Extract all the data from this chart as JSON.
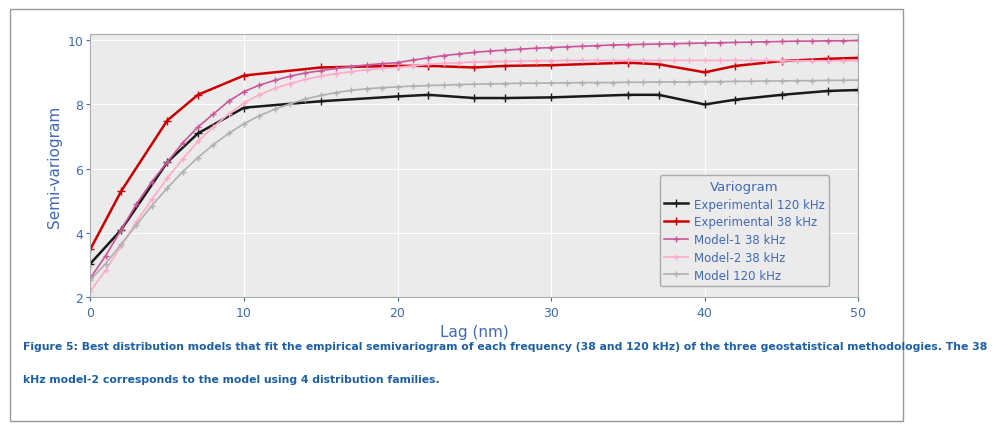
{
  "title": "",
  "xlabel": "Lag (nm)",
  "ylabel": "Semi-variogram",
  "legend_title": "Variogram",
  "xlim": [
    0,
    50
  ],
  "ylim": [
    2,
    10.2
  ],
  "yticks": [
    2,
    4,
    6,
    8,
    10
  ],
  "xticks": [
    0,
    10,
    20,
    30,
    40,
    50
  ],
  "background_color": "#ffffff",
  "plot_bg_color": "#ebebeb",
  "grid_color": "#ffffff",
  "label_color": "#4169b8",
  "caption_color": "#1a5fa8",
  "caption": "Figure 5: Best distribution models that fit the empirical semivariogram of each frequency (38 and 120 kHz) of the three geostatistical methodologies. The 38\nkHz model-2 corresponds to the model using 4 distribution families.",
  "border_color": "#aaaaaa",
  "series": [
    {
      "label": "Experimental 120 kHz",
      "color": "#1a1a1a",
      "marker": "+",
      "linewidth": 1.8,
      "markersize": 6,
      "markevery": 1,
      "x": [
        0,
        2,
        5,
        7,
        10,
        15,
        20,
        22,
        25,
        27,
        30,
        35,
        37,
        40,
        42,
        45,
        48,
        50
      ],
      "y": [
        3.05,
        4.1,
        6.2,
        7.1,
        7.9,
        8.1,
        8.25,
        8.3,
        8.2,
        8.2,
        8.22,
        8.3,
        8.3,
        8.0,
        8.15,
        8.3,
        8.42,
        8.45
      ]
    },
    {
      "label": "Experimental 38 kHz",
      "color": "#cc0000",
      "marker": "+",
      "linewidth": 1.8,
      "markersize": 6,
      "markevery": 1,
      "x": [
        0,
        2,
        5,
        7,
        10,
        15,
        20,
        22,
        25,
        27,
        30,
        35,
        37,
        40,
        42,
        45,
        48,
        50
      ],
      "y": [
        3.5,
        5.3,
        7.5,
        8.3,
        8.9,
        9.15,
        9.2,
        9.2,
        9.15,
        9.2,
        9.22,
        9.3,
        9.25,
        9.0,
        9.2,
        9.35,
        9.42,
        9.45
      ]
    },
    {
      "label": "Model-1 38 kHz",
      "color": "#cc5599",
      "marker": "+",
      "linewidth": 1.2,
      "markersize": 4,
      "markevery": 1,
      "x": [
        0,
        1,
        2,
        3,
        4,
        5,
        6,
        7,
        8,
        9,
        10,
        11,
        12,
        13,
        14,
        15,
        16,
        17,
        18,
        19,
        20,
        21,
        22,
        23,
        24,
        25,
        26,
        27,
        28,
        29,
        30,
        31,
        32,
        33,
        34,
        35,
        36,
        37,
        38,
        39,
        40,
        41,
        42,
        43,
        44,
        45,
        46,
        47,
        48,
        49,
        50
      ],
      "y": [
        2.6,
        3.3,
        4.1,
        4.9,
        5.6,
        6.2,
        6.8,
        7.3,
        7.7,
        8.1,
        8.4,
        8.6,
        8.75,
        8.88,
        8.98,
        9.05,
        9.12,
        9.18,
        9.23,
        9.27,
        9.3,
        9.38,
        9.45,
        9.52,
        9.57,
        9.62,
        9.66,
        9.69,
        9.72,
        9.75,
        9.77,
        9.79,
        9.81,
        9.83,
        9.85,
        9.86,
        9.87,
        9.88,
        9.89,
        9.9,
        9.91,
        9.92,
        9.93,
        9.94,
        9.95,
        9.96,
        9.97,
        9.97,
        9.98,
        9.98,
        9.99
      ]
    },
    {
      "label": "Model-2 38 kHz",
      "color": "#ffaacc",
      "marker": "+",
      "linewidth": 1.2,
      "markersize": 4,
      "markevery": 1,
      "x": [
        0,
        1,
        2,
        3,
        4,
        5,
        6,
        7,
        8,
        9,
        10,
        11,
        12,
        13,
        14,
        15,
        16,
        17,
        18,
        19,
        20,
        21,
        22,
        23,
        24,
        25,
        26,
        27,
        28,
        29,
        30,
        31,
        32,
        33,
        34,
        35,
        36,
        37,
        38,
        39,
        40,
        41,
        42,
        43,
        44,
        45,
        46,
        47,
        48,
        49,
        50
      ],
      "y": [
        2.2,
        2.85,
        3.6,
        4.35,
        5.05,
        5.7,
        6.3,
        6.85,
        7.3,
        7.7,
        8.05,
        8.3,
        8.5,
        8.65,
        8.78,
        8.88,
        8.96,
        9.02,
        9.08,
        9.12,
        9.15,
        9.2,
        9.25,
        9.28,
        9.3,
        9.32,
        9.33,
        9.34,
        9.35,
        9.36,
        9.36,
        9.37,
        9.37,
        9.37,
        9.37,
        9.37,
        9.37,
        9.37,
        9.37,
        9.37,
        9.37,
        9.37,
        9.37,
        9.37,
        9.37,
        9.36,
        9.36,
        9.36,
        9.36,
        9.36,
        9.36
      ]
    },
    {
      "label": "Model 120 kHz",
      "color": "#b0b0b0",
      "marker": "+",
      "linewidth": 1.2,
      "markersize": 4,
      "markevery": 1,
      "x": [
        0,
        1,
        2,
        3,
        4,
        5,
        6,
        7,
        8,
        9,
        10,
        11,
        12,
        13,
        14,
        15,
        16,
        17,
        18,
        19,
        20,
        21,
        22,
        23,
        24,
        25,
        26,
        27,
        28,
        29,
        30,
        31,
        32,
        33,
        34,
        35,
        36,
        37,
        38,
        39,
        40,
        41,
        42,
        43,
        44,
        45,
        46,
        47,
        48,
        49,
        50
      ],
      "y": [
        2.55,
        3.05,
        3.65,
        4.25,
        4.85,
        5.4,
        5.9,
        6.35,
        6.75,
        7.1,
        7.4,
        7.65,
        7.85,
        8.02,
        8.17,
        8.28,
        8.37,
        8.44,
        8.49,
        8.52,
        8.55,
        8.57,
        8.59,
        8.6,
        8.62,
        8.63,
        8.64,
        8.65,
        8.66,
        8.66,
        8.67,
        8.67,
        8.68,
        8.68,
        8.68,
        8.69,
        8.69,
        8.7,
        8.7,
        8.7,
        8.71,
        8.71,
        8.72,
        8.72,
        8.73,
        8.73,
        8.74,
        8.74,
        8.75,
        8.75,
        8.76
      ]
    }
  ]
}
